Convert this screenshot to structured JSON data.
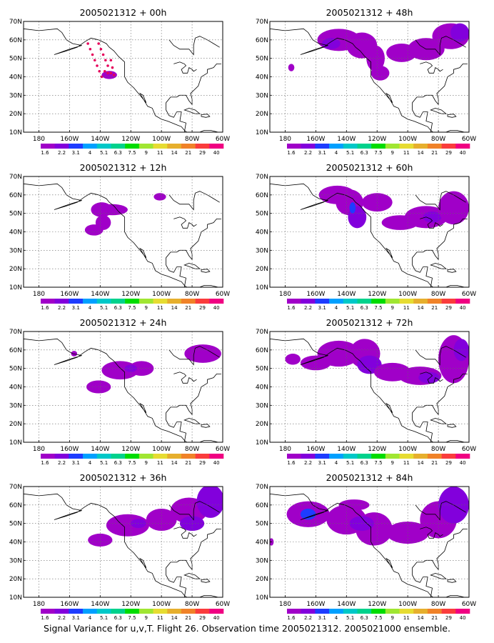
{
  "caption": "Signal Variance for u,v,T. Flight 26. Observation time 2005021312. 2005021000 ensemble.",
  "lat_labels": [
    "10N",
    "20N",
    "30N",
    "40N",
    "50N",
    "60N",
    "70N"
  ],
  "lon_labels": [
    "180",
    "160W",
    "140W",
    "120W",
    "100W",
    "80W",
    "60W"
  ],
  "colorbar": {
    "labels": [
      "1.6",
      "2.2",
      "3.1",
      "4",
      "5.1",
      "6.3",
      "7.5",
      "9",
      "11",
      "14",
      "21",
      "29",
      "40"
    ],
    "colors": [
      "#a000c8",
      "#8200dc",
      "#1e3cff",
      "#00a0ff",
      "#00c8c8",
      "#00d28c",
      "#00dc00",
      "#a0e632",
      "#e6dc32",
      "#e6af2d",
      "#f08228",
      "#fa3c3c",
      "#f00082"
    ]
  },
  "map_extent": {
    "lon": [
      -190,
      -60
    ],
    "lat": [
      10,
      70
    ]
  },
  "panels": [
    {
      "title": "2005021312 + 00h",
      "lead": "00h",
      "blobs": [
        {
          "lon": -134,
          "lat": 41,
          "rx": 5,
          "ry": 2.2,
          "level": 0
        }
      ],
      "dots": [
        [
          -148,
          58
        ],
        [
          -146.5,
          55
        ],
        [
          -145,
          52
        ],
        [
          -143.5,
          49
        ],
        [
          -142,
          46
        ],
        [
          -140.5,
          43
        ],
        [
          -139,
          40
        ],
        [
          -141,
          58
        ],
        [
          -139.5,
          55
        ],
        [
          -138,
          52
        ],
        [
          -136.5,
          49
        ],
        [
          -135,
          46
        ],
        [
          -133,
          42
        ],
        [
          -133,
          49
        ],
        [
          -132,
          45
        ],
        [
          -131,
          41
        ],
        [
          -137,
          43
        ],
        [
          -135,
          42
        ]
      ]
    },
    {
      "title": "2005021312 + 12h",
      "lead": "12h",
      "blobs": [
        {
          "lon": -139,
          "lat": 52,
          "rx": 7,
          "ry": 4,
          "level": 0
        },
        {
          "lon": -132,
          "lat": 52,
          "rx": 10,
          "ry": 3,
          "level": 0
        },
        {
          "lon": -138,
          "lat": 45,
          "rx": 5,
          "ry": 4,
          "level": 0
        },
        {
          "lon": -144,
          "lat": 41,
          "rx": 6,
          "ry": 3,
          "level": 0
        },
        {
          "lon": -101,
          "lat": 59,
          "rx": 4,
          "ry": 2,
          "level": 0
        }
      ]
    },
    {
      "title": "2005021312 + 24h",
      "lead": "24h",
      "blobs": [
        {
          "lon": -141,
          "lat": 40,
          "rx": 8,
          "ry": 3.5,
          "level": 0
        },
        {
          "lon": -127,
          "lat": 49,
          "rx": 12,
          "ry": 5,
          "level": 0
        },
        {
          "lon": -113,
          "lat": 50,
          "rx": 8,
          "ry": 4,
          "level": 0
        },
        {
          "lon": -120,
          "lat": 50,
          "rx": 4,
          "ry": 2,
          "level": 1
        },
        {
          "lon": -73,
          "lat": 58,
          "rx": 12,
          "ry": 5,
          "level": 0
        },
        {
          "lon": -157,
          "lat": 58,
          "rx": 2,
          "ry": 1.5,
          "level": 0
        }
      ]
    },
    {
      "title": "2005021312 + 36h",
      "lead": "36h",
      "blobs": [
        {
          "lon": -140,
          "lat": 41,
          "rx": 8,
          "ry": 3.5,
          "level": 0
        },
        {
          "lon": -122,
          "lat": 49,
          "rx": 14,
          "ry": 6,
          "level": 0
        },
        {
          "lon": -115,
          "lat": 50,
          "rx": 5,
          "ry": 2.5,
          "level": 1
        },
        {
          "lon": -100,
          "lat": 52,
          "rx": 10,
          "ry": 6,
          "level": 0
        },
        {
          "lon": -82,
          "lat": 57,
          "rx": 12,
          "ry": 7,
          "level": 0
        },
        {
          "lon": -68,
          "lat": 62,
          "rx": 9,
          "ry": 9,
          "level": 1
        },
        {
          "lon": -80,
          "lat": 50,
          "rx": 8,
          "ry": 4,
          "level": 1
        }
      ]
    },
    {
      "title": "2005021312 + 48h",
      "lead": "48h",
      "blobs": [
        {
          "lon": -176,
          "lat": 45,
          "rx": 2,
          "ry": 2,
          "level": 0
        },
        {
          "lon": -145,
          "lat": 60,
          "rx": 14,
          "ry": 6,
          "level": 0
        },
        {
          "lon": -150,
          "lat": 58,
          "rx": 6,
          "ry": 3,
          "level": 1
        },
        {
          "lon": -130,
          "lat": 57,
          "rx": 10,
          "ry": 7,
          "level": 0
        },
        {
          "lon": -121,
          "lat": 50,
          "rx": 6,
          "ry": 7,
          "level": 0
        },
        {
          "lon": -118,
          "lat": 42,
          "rx": 6,
          "ry": 4,
          "level": 0
        },
        {
          "lon": -104,
          "lat": 53,
          "rx": 10,
          "ry": 5,
          "level": 0
        },
        {
          "lon": -88,
          "lat": 55,
          "rx": 12,
          "ry": 6,
          "level": 0
        },
        {
          "lon": -72,
          "lat": 62,
          "rx": 12,
          "ry": 7,
          "level": 0
        },
        {
          "lon": -66,
          "lat": 64,
          "rx": 6,
          "ry": 5,
          "level": 1
        }
      ]
    },
    {
      "title": "2005021312 + 60h",
      "lead": "60h",
      "blobs": [
        {
          "lon": -146,
          "lat": 60,
          "rx": 12,
          "ry": 5,
          "level": 0
        },
        {
          "lon": -138,
          "lat": 56,
          "rx": 9,
          "ry": 7,
          "level": 0
        },
        {
          "lon": -133,
          "lat": 48,
          "rx": 6,
          "ry": 6,
          "level": 1
        },
        {
          "lon": -136,
          "lat": 53,
          "rx": 2,
          "ry": 3,
          "level": 2
        },
        {
          "lon": -120,
          "lat": 56,
          "rx": 10,
          "ry": 5,
          "level": 0
        },
        {
          "lon": -105,
          "lat": 45,
          "rx": 12,
          "ry": 4,
          "level": 0
        },
        {
          "lon": -88,
          "lat": 48,
          "rx": 14,
          "ry": 6,
          "level": 0
        },
        {
          "lon": -84,
          "lat": 48,
          "rx": 6,
          "ry": 3,
          "level": 1
        },
        {
          "lon": -70,
          "lat": 53,
          "rx": 10,
          "ry": 9,
          "level": 0
        }
      ]
    },
    {
      "title": "2005021312 + 72h",
      "lead": "72h",
      "blobs": [
        {
          "lon": -175,
          "lat": 55,
          "rx": 5,
          "ry": 3,
          "level": 0
        },
        {
          "lon": -160,
          "lat": 53,
          "rx": 10,
          "ry": 4,
          "level": 0
        },
        {
          "lon": -145,
          "lat": 58,
          "rx": 14,
          "ry": 7,
          "level": 0
        },
        {
          "lon": -128,
          "lat": 58,
          "rx": 10,
          "ry": 8,
          "level": 0
        },
        {
          "lon": -125,
          "lat": 52,
          "rx": 8,
          "ry": 5,
          "level": 1
        },
        {
          "lon": -110,
          "lat": 48,
          "rx": 12,
          "ry": 5,
          "level": 0
        },
        {
          "lon": -92,
          "lat": 46,
          "rx": 14,
          "ry": 5,
          "level": 0
        },
        {
          "lon": -86,
          "lat": 45,
          "rx": 7,
          "ry": 3,
          "level": 1
        },
        {
          "lon": -70,
          "lat": 55,
          "rx": 10,
          "ry": 13,
          "level": 0
        },
        {
          "lon": -65,
          "lat": 60,
          "rx": 5,
          "ry": 6,
          "level": 1
        }
      ]
    },
    {
      "title": "2005021312 + 84h",
      "lead": "84h",
      "blobs": [
        {
          "lon": -189,
          "lat": 40,
          "rx": 1.5,
          "ry": 2,
          "level": 0
        },
        {
          "lon": -165,
          "lat": 55,
          "rx": 14,
          "ry": 7,
          "level": 0
        },
        {
          "lon": -165,
          "lat": 55,
          "rx": 5,
          "ry": 3,
          "level": 2
        },
        {
          "lon": -140,
          "lat": 52,
          "rx": 13,
          "ry": 8,
          "level": 0
        },
        {
          "lon": -122,
          "lat": 47,
          "rx": 12,
          "ry": 9,
          "level": 0
        },
        {
          "lon": -130,
          "lat": 50,
          "rx": 8,
          "ry": 4,
          "level": 1
        },
        {
          "lon": -100,
          "lat": 45,
          "rx": 14,
          "ry": 6,
          "level": 0
        },
        {
          "lon": -80,
          "lat": 52,
          "rx": 12,
          "ry": 10,
          "level": 0
        },
        {
          "lon": -70,
          "lat": 60,
          "rx": 10,
          "ry": 10,
          "level": 1
        },
        {
          "lon": -135,
          "lat": 60,
          "rx": 10,
          "ry": 3,
          "level": 0
        }
      ]
    }
  ]
}
